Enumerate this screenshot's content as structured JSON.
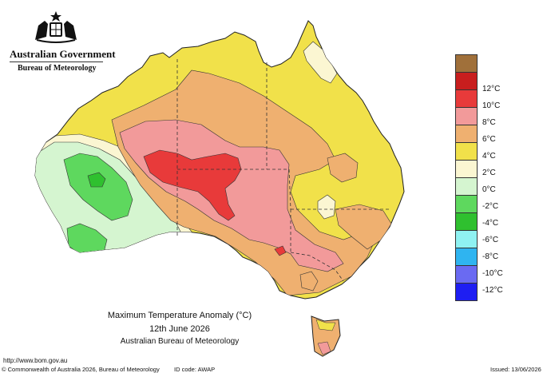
{
  "header": {
    "government": "Australian Government",
    "bureau": "Bureau of Meteorology"
  },
  "title": {
    "line1": "Maximum Temperature Anomaly (°C)",
    "line2": "12th June 2026",
    "line3": "Australian Bureau of Meteorology"
  },
  "legend": [
    {
      "label": "",
      "color": "#a0703a"
    },
    {
      "label": "12°C",
      "color": "#c81e1e"
    },
    {
      "label": "10°C",
      "color": "#e83a3a"
    },
    {
      "label": "8°C",
      "color": "#f29a9a"
    },
    {
      "label": "6°C",
      "color": "#efb070"
    },
    {
      "label": "4°C",
      "color": "#f1e14a"
    },
    {
      "label": "2°C",
      "color": "#fbf6d2"
    },
    {
      "label": "0°C",
      "color": "#d5f5d0"
    },
    {
      "label": "-2°C",
      "color": "#5ed85e"
    },
    {
      "label": "-4°C",
      "color": "#2fc02f"
    },
    {
      "label": "-6°C",
      "color": "#8ff2f2"
    },
    {
      "label": "-8°C",
      "color": "#2fb4f0"
    },
    {
      "label": "-10°C",
      "color": "#6a6af2"
    },
    {
      "label": "-12°C",
      "color": "#1e1ef2"
    }
  ],
  "footer": {
    "url": "http://www.bom.gov.au",
    "copyright": "© Commonwealth of Australia 2026, Bureau of Meteorology",
    "id_code": "ID code: AWAP",
    "issued": "Issued: 13/06/2026"
  }
}
